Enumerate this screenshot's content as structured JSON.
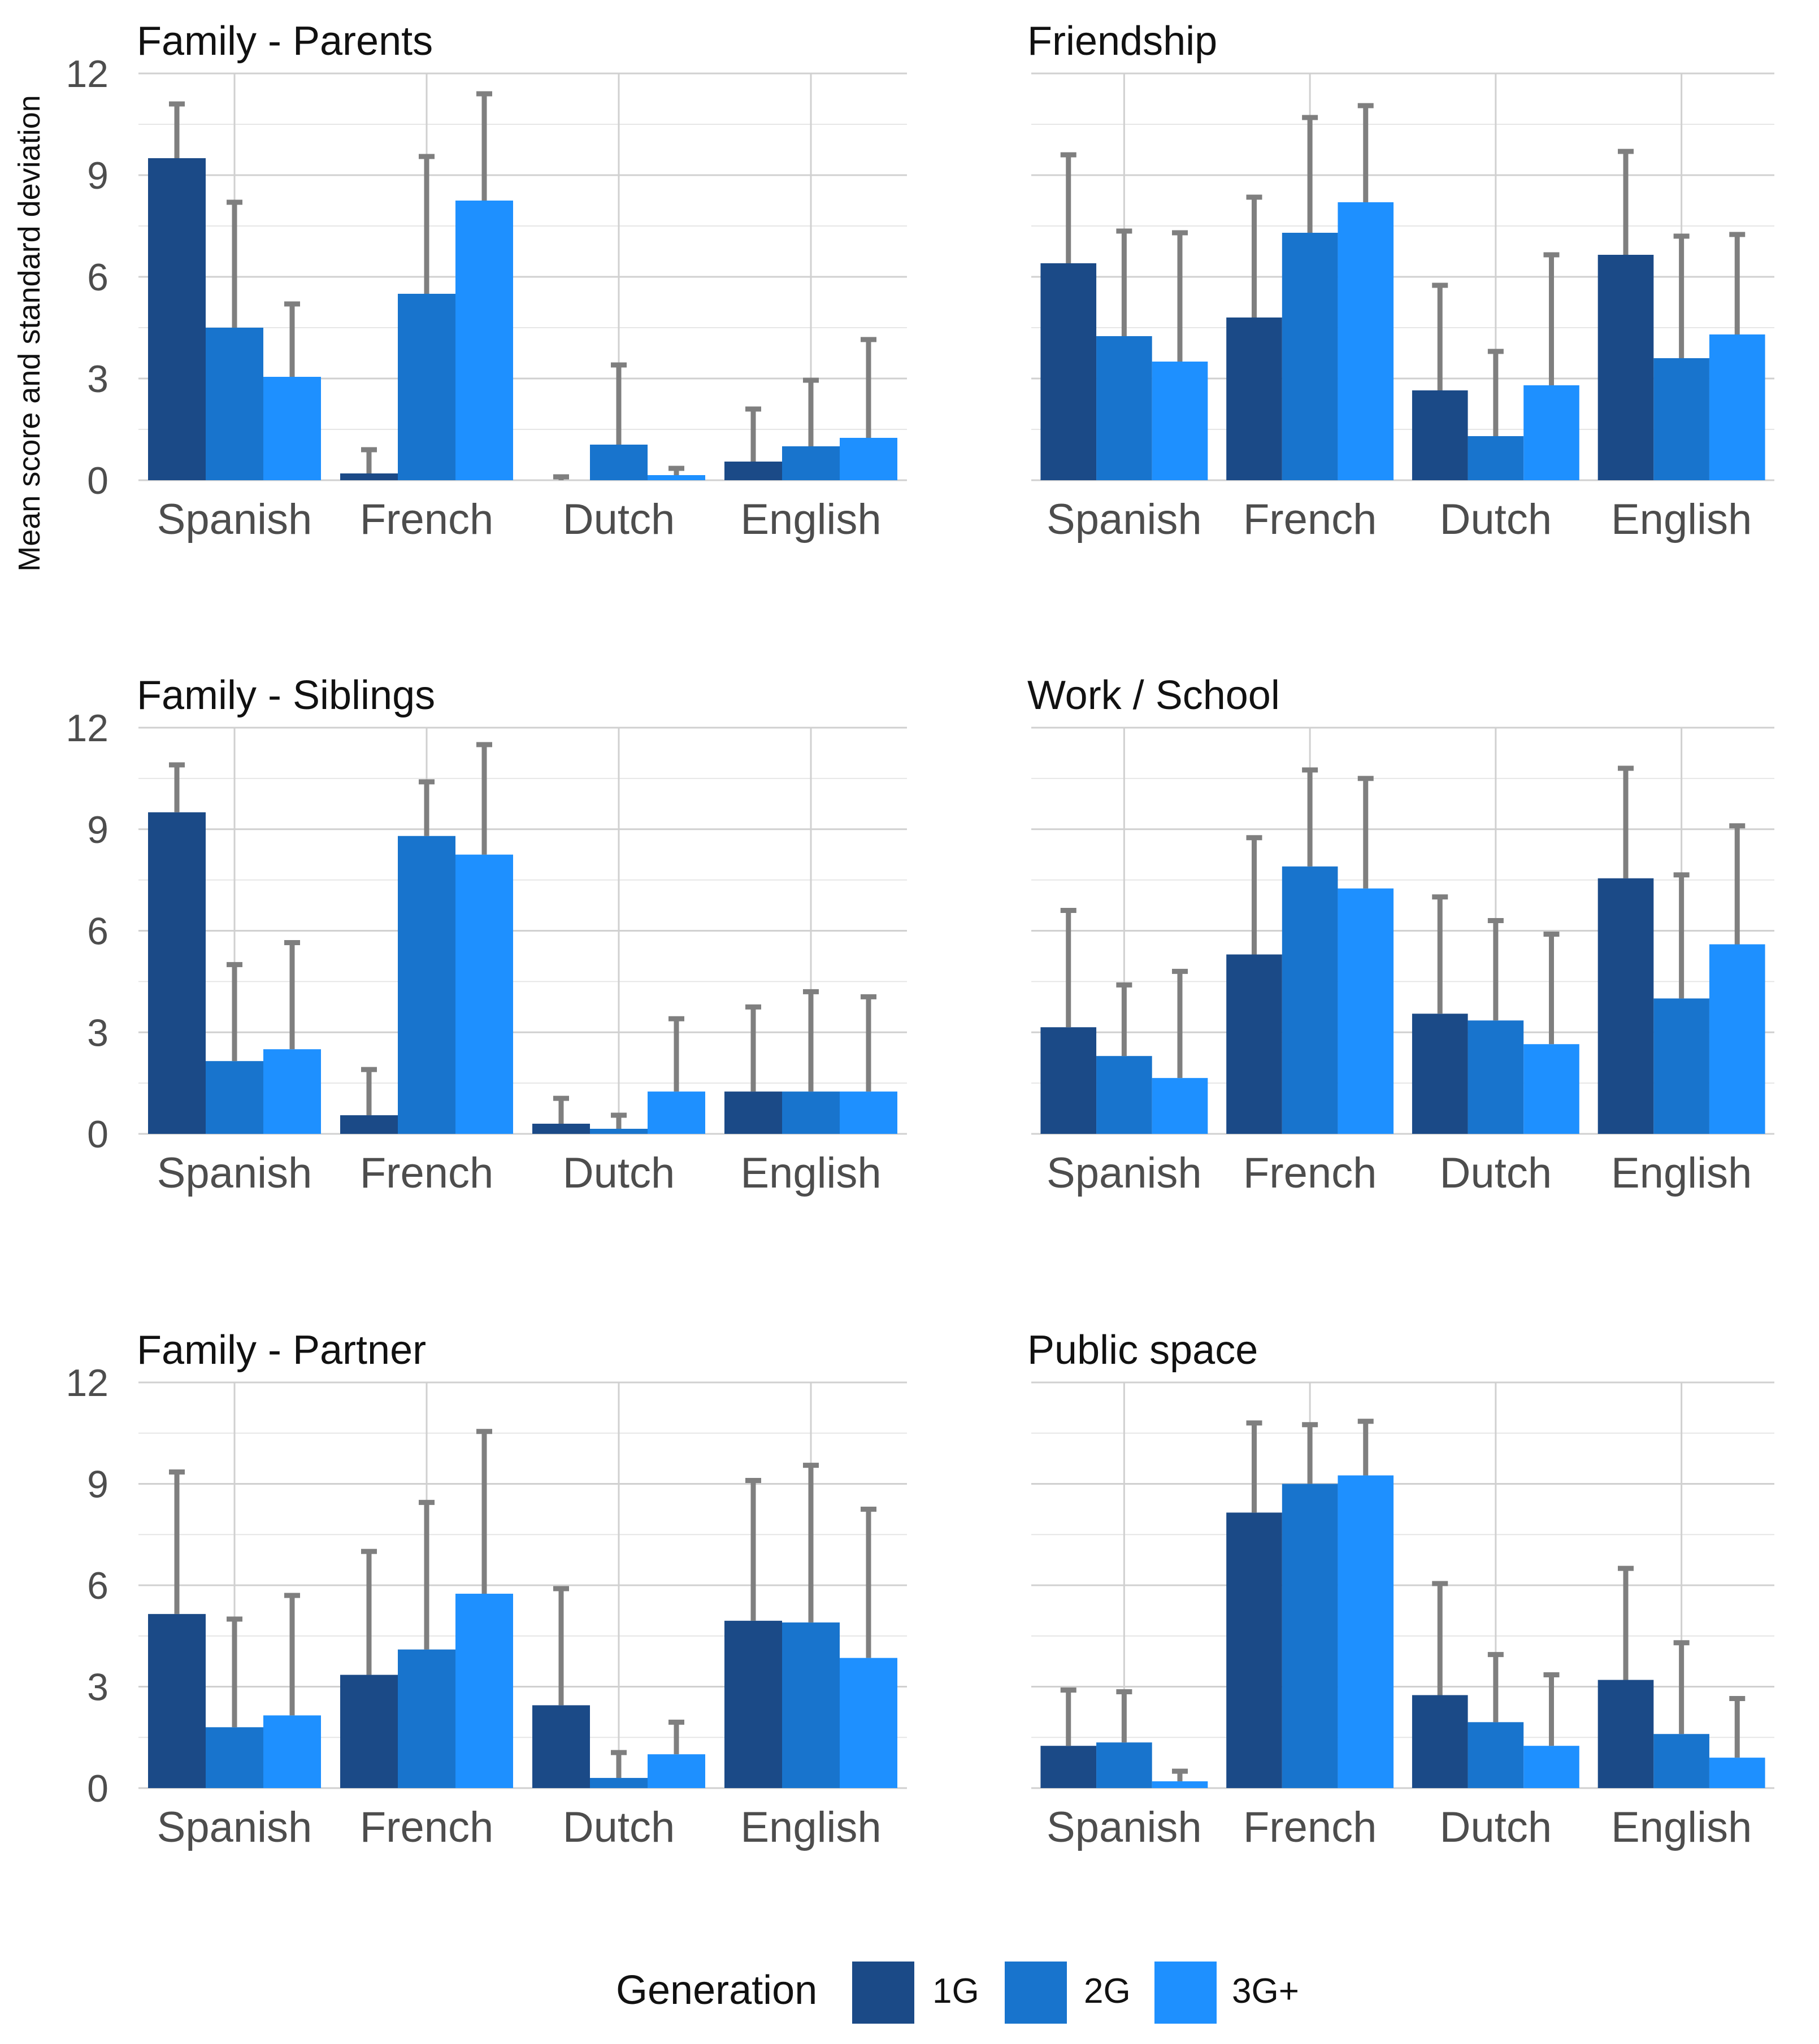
{
  "y_axis_label": "Mean score and standard deviation",
  "legend": {
    "title": "Generation",
    "items": [
      {
        "label": "1G",
        "color": "#1B4A87"
      },
      {
        "label": "2G",
        "color": "#1874CD"
      },
      {
        "label": "3G+",
        "color": "#1E90FF"
      }
    ]
  },
  "error_bar_color": "#7F7F7F",
  "chart_data": [
    {
      "type": "bar",
      "title": "Family - Parents",
      "categories": [
        "Spanish",
        "French",
        "Dutch",
        "English"
      ],
      "ylim": [
        0,
        12
      ],
      "yticks": [
        "0",
        "3",
        "6",
        "9",
        "12"
      ],
      "series": [
        {
          "name": "1G",
          "values": [
            9.5,
            0.2,
            0.0,
            0.55
          ],
          "sd": [
            1.6,
            0.7,
            0.1,
            1.55
          ]
        },
        {
          "name": "2G",
          "values": [
            4.5,
            5.5,
            1.05,
            1.0
          ],
          "sd": [
            3.7,
            4.05,
            2.35,
            1.95
          ]
        },
        {
          "name": "3G+",
          "values": [
            3.05,
            8.25,
            0.15,
            1.25
          ],
          "sd": [
            2.15,
            3.15,
            0.2,
            2.9
          ]
        }
      ]
    },
    {
      "type": "bar",
      "title": "Friendship",
      "categories": [
        "Spanish",
        "French",
        "Dutch",
        "English"
      ],
      "ylim": [
        0,
        12
      ],
      "yticks": [
        "0",
        "3",
        "6",
        "9",
        "12"
      ],
      "series": [
        {
          "name": "1G",
          "values": [
            6.4,
            4.8,
            2.65,
            6.65
          ],
          "sd": [
            3.2,
            3.55,
            3.1,
            3.05
          ]
        },
        {
          "name": "2G",
          "values": [
            4.25,
            7.3,
            1.3,
            3.6
          ],
          "sd": [
            3.1,
            3.4,
            2.5,
            3.6
          ]
        },
        {
          "name": "3G+",
          "values": [
            3.5,
            8.2,
            2.8,
            4.3
          ],
          "sd": [
            3.8,
            2.85,
            3.85,
            2.95
          ]
        }
      ]
    },
    {
      "type": "bar",
      "title": "Family - Siblings",
      "categories": [
        "Spanish",
        "French",
        "Dutch",
        "English"
      ],
      "ylim": [
        0,
        12
      ],
      "yticks": [
        "0",
        "3",
        "6",
        "9",
        "12"
      ],
      "series": [
        {
          "name": "1G",
          "values": [
            9.5,
            0.55,
            0.3,
            1.25
          ],
          "sd": [
            1.4,
            1.35,
            0.75,
            2.5
          ]
        },
        {
          "name": "2G",
          "values": [
            2.15,
            8.8,
            0.15,
            1.25
          ],
          "sd": [
            2.85,
            1.6,
            0.4,
            2.95
          ]
        },
        {
          "name": "3G+",
          "values": [
            2.5,
            8.25,
            1.25,
            1.25
          ],
          "sd": [
            3.15,
            3.25,
            2.15,
            2.8
          ]
        }
      ]
    },
    {
      "type": "bar",
      "title": "Work / School",
      "categories": [
        "Spanish",
        "French",
        "Dutch",
        "English"
      ],
      "ylim": [
        0,
        12
      ],
      "yticks": [
        "0",
        "3",
        "6",
        "9",
        "12"
      ],
      "series": [
        {
          "name": "1G",
          "values": [
            3.15,
            5.3,
            3.55,
            7.55
          ],
          "sd": [
            3.45,
            3.45,
            3.45,
            3.25
          ]
        },
        {
          "name": "2G",
          "values": [
            2.3,
            7.9,
            3.35,
            4.0
          ],
          "sd": [
            2.1,
            2.85,
            2.95,
            3.65
          ]
        },
        {
          "name": "3G+",
          "values": [
            1.65,
            7.25,
            2.65,
            5.6
          ],
          "sd": [
            3.15,
            3.25,
            3.25,
            3.5
          ]
        }
      ]
    },
    {
      "type": "bar",
      "title": "Family - Partner",
      "categories": [
        "Spanish",
        "French",
        "Dutch",
        "English"
      ],
      "ylim": [
        0,
        12
      ],
      "yticks": [
        "0",
        "3",
        "6",
        "9",
        "12"
      ],
      "series": [
        {
          "name": "1G",
          "values": [
            5.15,
            3.35,
            2.45,
            4.95
          ],
          "sd": [
            4.2,
            3.65,
            3.45,
            4.15
          ]
        },
        {
          "name": "2G",
          "values": [
            1.8,
            4.1,
            0.3,
            4.9
          ],
          "sd": [
            3.2,
            4.35,
            0.75,
            4.65
          ]
        },
        {
          "name": "3G+",
          "values": [
            2.15,
            5.75,
            1.0,
            3.85
          ],
          "sd": [
            3.55,
            4.8,
            0.95,
            4.4
          ]
        }
      ]
    },
    {
      "type": "bar",
      "title": "Public space",
      "categories": [
        "Spanish",
        "French",
        "Dutch",
        "English"
      ],
      "ylim": [
        0,
        12
      ],
      "yticks": [
        "0",
        "3",
        "6",
        "9",
        "12"
      ],
      "series": [
        {
          "name": "1G",
          "values": [
            1.25,
            8.15,
            2.75,
            3.2
          ],
          "sd": [
            1.65,
            2.65,
            3.3,
            3.3
          ]
        },
        {
          "name": "2G",
          "values": [
            1.35,
            9.0,
            1.95,
            1.6
          ],
          "sd": [
            1.5,
            1.75,
            2.0,
            2.7
          ]
        },
        {
          "name": "3G+",
          "values": [
            0.2,
            9.25,
            1.25,
            0.9
          ],
          "sd": [
            0.3,
            1.6,
            2.1,
            1.75
          ]
        }
      ]
    }
  ]
}
